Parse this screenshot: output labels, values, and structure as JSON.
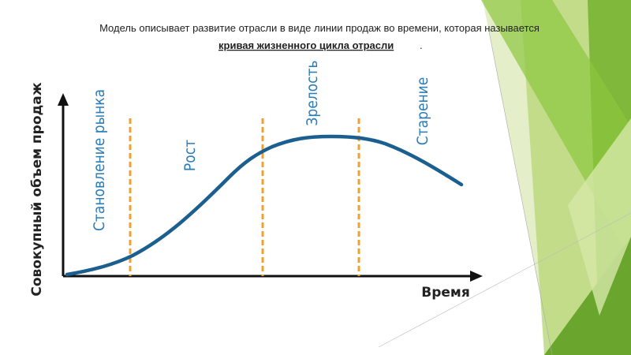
{
  "header": {
    "line1": "Модель описывает развитие отрасли в виде линии продаж во времени, которая называется",
    "term": "кривая жизненного цикла отрасли",
    "term_end": "."
  },
  "diagram": {
    "y_axis_label": "Совокупный объем продаж",
    "x_axis_label": "Время",
    "stages": [
      "Становление рынка",
      "Рост",
      "Зрелость",
      "Старение"
    ]
  }
}
